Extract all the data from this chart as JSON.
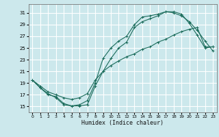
{
  "xlabel": "Humidex (Indice chaleur)",
  "xlim": [
    -0.5,
    23.5
  ],
  "ylim": [
    14.0,
    32.5
  ],
  "xticks": [
    0,
    1,
    2,
    3,
    4,
    5,
    6,
    7,
    8,
    9,
    10,
    11,
    12,
    13,
    14,
    15,
    16,
    17,
    18,
    19,
    20,
    21,
    22,
    23
  ],
  "yticks": [
    15,
    17,
    19,
    21,
    23,
    25,
    27,
    29,
    31
  ],
  "background_color": "#cce8ec",
  "grid_color": "#ffffff",
  "line_color": "#1a6b5a",
  "curve1_x": [
    0,
    1,
    2,
    3,
    4,
    5,
    6,
    7,
    8,
    9,
    10,
    11,
    12,
    13,
    14,
    15,
    16,
    17,
    18,
    19,
    20,
    21,
    22,
    23
  ],
  "curve1_y": [
    19.5,
    18.2,
    17.2,
    16.5,
    15.3,
    15.1,
    15.1,
    15.3,
    18.5,
    21.0,
    23.2,
    25.0,
    26.0,
    28.5,
    29.5,
    30.0,
    30.5,
    31.2,
    31.2,
    30.8,
    29.2,
    27.2,
    25.0,
    25.2
  ],
  "curve2_x": [
    0,
    1,
    2,
    3,
    4,
    5,
    6,
    7,
    8,
    9,
    10,
    11,
    12,
    13,
    14,
    15,
    16,
    17,
    18,
    19,
    20,
    21,
    22,
    23
  ],
  "curve2_y": [
    19.5,
    18.2,
    17.0,
    16.7,
    15.5,
    15.1,
    15.3,
    16.0,
    19.0,
    23.2,
    25.0,
    26.2,
    27.0,
    29.0,
    30.3,
    30.5,
    30.8,
    31.2,
    31.0,
    30.5,
    29.5,
    28.0,
    26.2,
    24.5
  ],
  "curve3_x": [
    0,
    1,
    2,
    3,
    4,
    5,
    6,
    7,
    8,
    9,
    10,
    11,
    12,
    13,
    14,
    15,
    16,
    17,
    18,
    19,
    20,
    21,
    22,
    23
  ],
  "curve3_y": [
    19.5,
    18.5,
    17.5,
    17.0,
    16.5,
    16.2,
    16.5,
    17.2,
    19.5,
    21.0,
    22.0,
    22.8,
    23.5,
    24.0,
    24.8,
    25.2,
    26.0,
    26.5,
    27.2,
    27.8,
    28.2,
    28.5,
    25.2,
    25.2
  ]
}
